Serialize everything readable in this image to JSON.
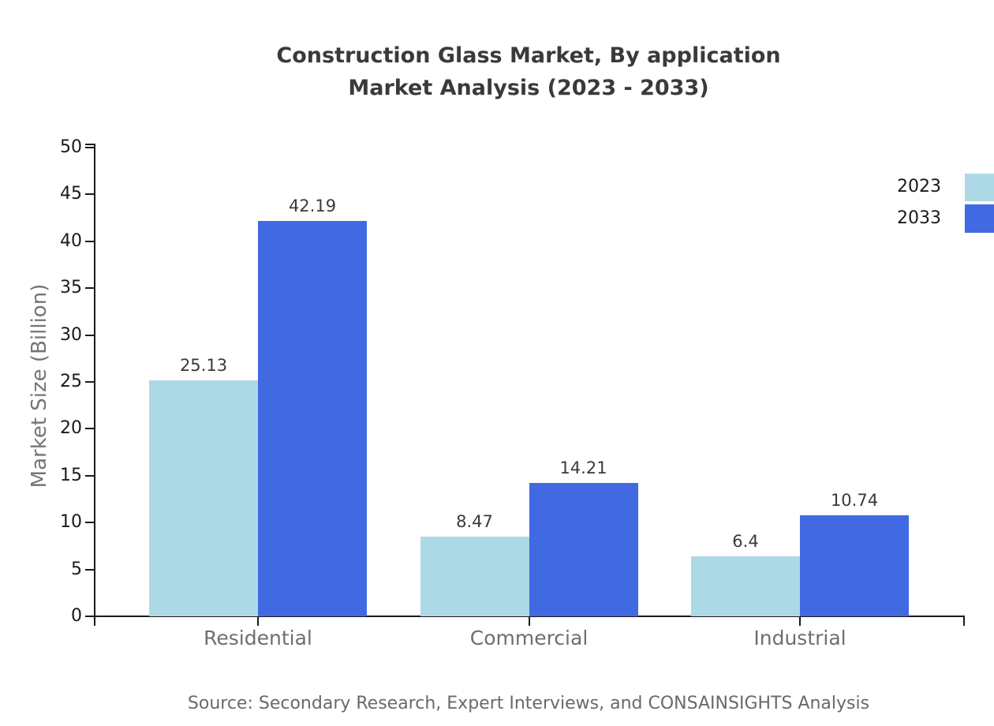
{
  "chart_data": {
    "type": "bar",
    "title_line1": "Construction Glass Market, By application",
    "title_line2": "Market Analysis (2023 - 2033)",
    "categories": [
      "Residential",
      "Commercial",
      "Industrial"
    ],
    "series": [
      {
        "name": "2023",
        "color": "#add8e6",
        "values": [
          25.13,
          8.47,
          6.4
        ]
      },
      {
        "name": "2033",
        "color": "#4169e1",
        "values": [
          42.19,
          14.21,
          10.74
        ]
      }
    ],
    "ylabel": "Market Size (Billion)",
    "ylim": [
      0,
      50
    ],
    "yticks": [
      0,
      5,
      10,
      15,
      20,
      25,
      30,
      35,
      40,
      45,
      50
    ],
    "grid": false,
    "legend_position": "top-right",
    "axis_color": "#1a1a1a"
  },
  "source_note": "Source: Secondary Research, Expert Interviews, and CONSAINSIGHTS Analysis"
}
